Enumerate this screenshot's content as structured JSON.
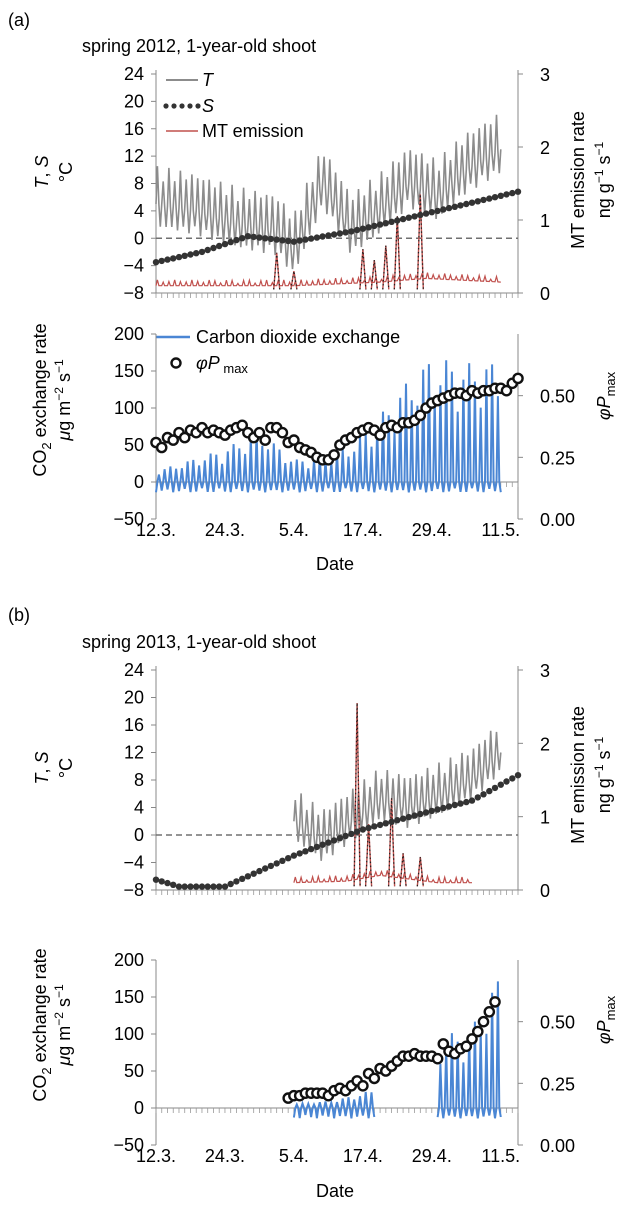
{
  "colors": {
    "temperature": "#8c8c8c",
    "sum": "#333333",
    "emission": "#c0504d",
    "co2": "#4a86d4",
    "phi": "#111111",
    "zero": "#707070"
  },
  "chart_data": [
    {
      "panel": "(a)",
      "title": "spring 2012, 1-year-old shoot",
      "type": "line",
      "x_type": "date",
      "x_range": [
        "2012-03-12",
        "2012-05-14"
      ],
      "x_ticks": [
        "12.3.",
        "24.3.",
        "5.4.",
        "17.4.",
        "29.4.",
        "11.5."
      ],
      "x_tick_dates": [
        "2012-03-12",
        "2012-03-24",
        "2012-04-05",
        "2012-04-17",
        "2012-04-29",
        "2012-05-11"
      ],
      "xlabel": "Date",
      "top": {
        "ylabel_left": "T, S °C",
        "ylabel_right": "MT emission rate ng g−1 s−1",
        "y_left_range": [
          -8,
          24
        ],
        "y_left_ticks": [
          "24",
          "20",
          "16",
          "12",
          "8",
          "4",
          "0",
          "−4",
          "−8"
        ],
        "y_right_range": [
          0,
          3
        ],
        "y_right_ticks": [
          "3",
          "2",
          "1",
          "0"
        ],
        "zero_line": true,
        "legend": [
          "T",
          "S",
          "MT emission"
        ],
        "T_span": [
          "2012-03-12",
          "2012-05-11"
        ],
        "T_points": [
          [
            "2012-03-12",
            5
          ],
          [
            "2012-03-19",
            4
          ],
          [
            "2012-03-26",
            2
          ],
          [
            "2012-04-02",
            1
          ],
          [
            "2012-04-05",
            -2
          ],
          [
            "2012-04-10",
            8
          ],
          [
            "2012-04-15",
            1
          ],
          [
            "2012-04-20",
            4
          ],
          [
            "2012-04-25",
            8
          ],
          [
            "2012-04-30",
            6
          ],
          [
            "2012-05-05",
            10
          ],
          [
            "2012-05-11",
            13
          ]
        ],
        "T_amplitude": 7,
        "S_points": [
          [
            "2012-03-12",
            -3.5
          ],
          [
            "2012-03-20",
            -2
          ],
          [
            "2012-03-28",
            0.3
          ],
          [
            "2012-04-05",
            -0.5
          ],
          [
            "2012-04-15",
            1
          ],
          [
            "2012-04-25",
            3
          ],
          [
            "2012-05-05",
            5
          ],
          [
            "2012-05-14",
            6.8
          ]
        ],
        "MT_baseline": [
          [
            "2012-03-12",
            0.1
          ],
          [
            "2012-04-05",
            0.1
          ],
          [
            "2012-04-20",
            0.15
          ],
          [
            "2012-04-28",
            0.2
          ],
          [
            "2012-05-11",
            0.15
          ]
        ],
        "MT_peaks": [
          [
            "2012-04-02",
            0.55
          ],
          [
            "2012-04-05",
            0.3
          ],
          [
            "2012-04-17",
            0.6
          ],
          [
            "2012-04-19",
            0.45
          ],
          [
            "2012-04-21",
            0.65
          ],
          [
            "2012-04-23",
            1.05
          ],
          [
            "2012-04-27",
            1.35
          ]
        ]
      },
      "bottom": {
        "ylabel_left": "CO2 exchange rate μg m−2 s−1",
        "ylabel_right": "φPmax",
        "y_left_range": [
          -50,
          200
        ],
        "y_left_ticks": [
          "200",
          "150",
          "100",
          "50",
          "0",
          "−50"
        ],
        "y_right_range": [
          0,
          0.75
        ],
        "y_right_ticks": [
          "0.50",
          "0.25",
          "0.00"
        ],
        "legend": [
          "Carbon dioxide exchange",
          "φPmax"
        ],
        "CO2_span": [
          "2012-03-12",
          "2012-05-11"
        ],
        "CO2_peak_envelope": [
          [
            "2012-03-12",
            15
          ],
          [
            "2012-03-24",
            45
          ],
          [
            "2012-03-30",
            70
          ],
          [
            "2012-04-05",
            30
          ],
          [
            "2012-04-10",
            35
          ],
          [
            "2012-04-15",
            50
          ],
          [
            "2012-04-20",
            90
          ],
          [
            "2012-04-24",
            130
          ],
          [
            "2012-04-29",
            170
          ],
          [
            "2012-05-05",
            160
          ],
          [
            "2012-05-09",
            165
          ],
          [
            "2012-05-11",
            150
          ]
        ],
        "phiPmax": [
          0.31,
          0.29,
          0.33,
          0.32,
          0.35,
          0.33,
          0.36,
          0.35,
          0.37,
          0.35,
          0.36,
          0.35,
          0.34,
          0.36,
          0.37,
          0.38,
          0.35,
          0.33,
          0.35,
          0.32,
          0.37,
          0.37,
          0.35,
          0.31,
          0.32,
          0.29,
          0.28,
          0.27,
          0.25,
          0.24,
          0.24,
          0.26,
          0.3,
          0.32,
          0.33,
          0.35,
          0.36,
          0.37,
          0.36,
          0.34,
          0.37,
          0.38,
          0.37,
          0.39,
          0.39,
          0.4,
          0.42,
          0.45,
          0.47,
          0.48,
          0.49,
          0.5,
          0.51,
          0.51,
          0.5,
          0.52,
          0.51,
          0.52,
          0.52,
          0.53,
          0.53,
          0.52,
          0.55,
          0.57
        ],
        "phi_start": "2012-03-12"
      }
    },
    {
      "panel": "(b)",
      "title": "spring 2013, 1-year-old shoot",
      "type": "line",
      "x_type": "date",
      "x_range": [
        "2013-03-12",
        "2013-05-14"
      ],
      "x_ticks": [
        "12.3.",
        "24.3.",
        "5.4.",
        "17.4.",
        "29.4.",
        "11.5."
      ],
      "x_tick_dates": [
        "2013-03-12",
        "2013-03-24",
        "2013-04-05",
        "2013-04-17",
        "2013-04-29",
        "2013-05-11"
      ],
      "xlabel": "Date",
      "top": {
        "ylabel_left": "T, S °C",
        "ylabel_right": "MT emission rate ng g−1 s−1",
        "y_left_range": [
          -8,
          24
        ],
        "y_left_ticks": [
          "24",
          "20",
          "16",
          "12",
          "8",
          "4",
          "0",
          "−4",
          "−8"
        ],
        "y_right_range": [
          0,
          3
        ],
        "y_right_ticks": [
          "3",
          "2",
          "1",
          "0"
        ],
        "zero_line": true,
        "T_span": [
          "2013-04-05",
          "2013-05-11"
        ],
        "T_points": [
          [
            "2013-04-05",
            2
          ],
          [
            "2013-04-10",
            -1
          ],
          [
            "2013-04-15",
            2
          ],
          [
            "2013-04-20",
            5
          ],
          [
            "2013-04-25",
            4
          ],
          [
            "2013-05-01",
            6
          ],
          [
            "2013-05-06",
            8
          ],
          [
            "2013-05-11",
            12
          ]
        ],
        "T_amplitude": 6,
        "S_points": [
          [
            "2013-03-12",
            -6.5
          ],
          [
            "2013-03-16",
            -7.5
          ],
          [
            "2013-03-24",
            -7.5
          ],
          [
            "2013-04-05",
            -3
          ],
          [
            "2013-04-17",
            0.8
          ],
          [
            "2013-04-29",
            3.5
          ],
          [
            "2013-05-06",
            5
          ],
          [
            "2013-05-14",
            8.7
          ]
        ],
        "MT_baseline": [
          [
            "2013-04-05",
            0.1
          ],
          [
            "2013-04-14",
            0.12
          ],
          [
            "2013-04-20",
            0.2
          ],
          [
            "2013-04-30",
            0.1
          ],
          [
            "2013-05-06",
            0.1
          ]
        ],
        "MT_peaks": [
          [
            "2013-04-16",
            2.55
          ],
          [
            "2013-04-18",
            0.9
          ],
          [
            "2013-04-22",
            1.25
          ],
          [
            "2013-04-24",
            0.5
          ],
          [
            "2013-04-27",
            0.45
          ]
        ]
      },
      "bottom": {
        "ylabel_left": "CO2 exchange rate μg m−2 s−1",
        "ylabel_right": "φPmax",
        "y_left_range": [
          -50,
          200
        ],
        "y_left_ticks": [
          "200",
          "150",
          "100",
          "50",
          "0",
          "−50"
        ],
        "y_right_range": [
          0,
          0.75
        ],
        "y_right_ticks": [
          "0.50",
          "0.25",
          "0.00"
        ],
        "CO2_segments": [
          [
            "2013-04-05",
            "2013-04-19"
          ],
          [
            "2013-04-30",
            "2013-05-11"
          ]
        ],
        "CO2_peak_envelope": [
          [
            "2013-04-05",
            5
          ],
          [
            "2013-04-12",
            10
          ],
          [
            "2013-04-19",
            25
          ],
          [
            "2013-04-30",
            95
          ],
          [
            "2013-05-06",
            110
          ],
          [
            "2013-05-11",
            185
          ]
        ],
        "phiPmax": [
          0.19,
          0.2,
          0.2,
          0.21,
          0.21,
          0.21,
          0.21,
          0.2,
          0.22,
          0.23,
          0.22,
          0.24,
          0.26,
          0.24,
          0.29,
          0.27,
          0.31,
          0.3,
          0.32,
          0.34,
          0.36,
          0.36,
          0.37,
          0.36,
          0.36,
          0.36,
          0.35,
          0.41,
          0.38,
          0.37,
          0.39,
          0.4,
          0.43,
          0.46,
          0.5,
          0.54,
          0.58
        ],
        "phi_start": "2013-04-04"
      }
    }
  ]
}
